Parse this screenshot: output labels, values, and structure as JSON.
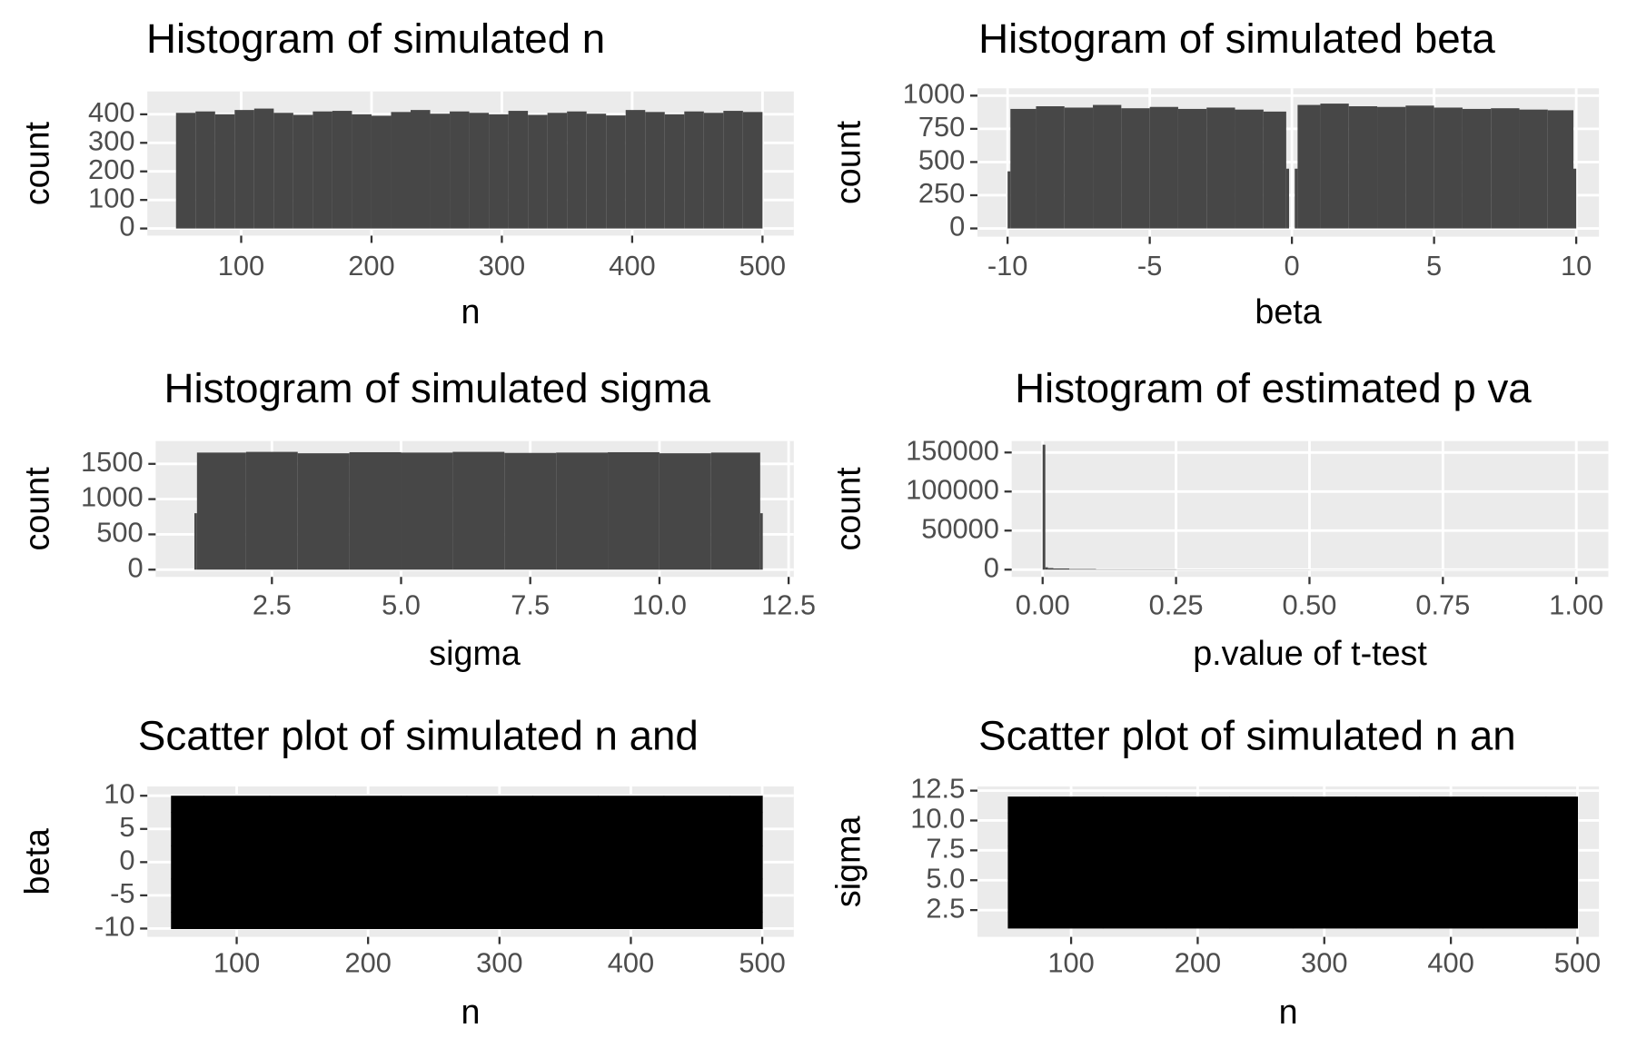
{
  "chart_data": [
    {
      "type": "histogram",
      "title": "Histogram of simulated n",
      "x_label": "n",
      "y_label": "count",
      "color": "#474747",
      "grid": true,
      "bins": [
        50,
        65,
        80,
        95,
        110,
        125,
        140,
        155,
        170,
        185,
        200,
        215,
        230,
        245,
        260,
        275,
        290,
        305,
        320,
        335,
        350,
        365,
        380,
        395,
        410,
        425,
        440,
        455,
        470,
        485,
        500
      ],
      "values": [
        405,
        410,
        400,
        415,
        420,
        405,
        398,
        410,
        412,
        400,
        395,
        408,
        415,
        402,
        410,
        405,
        400,
        412,
        398,
        405,
        410,
        402,
        396,
        415,
        408,
        400,
        410,
        405,
        412,
        408
      ],
      "xlim": [
        28,
        524
      ],
      "ylim": [
        -25,
        480
      ],
      "xticks": [
        100,
        200,
        300,
        400,
        500
      ],
      "yticks": [
        0,
        100,
        200,
        300,
        400
      ]
    },
    {
      "type": "histogram",
      "title": "Histogram of simulated beta",
      "x_label": "beta",
      "y_label": "count",
      "color": "#474747",
      "grid": true,
      "bins": [
        -10,
        -9.9,
        -9,
        -8,
        -7,
        -6,
        -5,
        -4,
        -3,
        -2,
        -1,
        -0.2,
        -0.1,
        0,
        0.1,
        0.2,
        1,
        2,
        3,
        4,
        5,
        6,
        7,
        8,
        9,
        9.9,
        10
      ],
      "values": [
        430,
        900,
        920,
        910,
        930,
        905,
        915,
        900,
        910,
        895,
        880,
        450,
        0,
        0,
        450,
        930,
        940,
        920,
        915,
        925,
        910,
        900,
        905,
        895,
        890,
        450
      ],
      "xlim": [
        -11.06,
        10.8
      ],
      "ylim": [
        -62,
        1055
      ],
      "xticks": [
        -10,
        -5,
        0,
        5,
        10
      ],
      "yticks": [
        0,
        250,
        500,
        750,
        1000
      ]
    },
    {
      "type": "histogram",
      "title": "Histogram of simulated sigma",
      "x_label": "sigma",
      "y_label": "count",
      "color": "#474747",
      "grid": true,
      "bins": [
        1,
        1.05,
        2,
        3,
        4,
        5,
        6,
        7,
        8,
        9,
        10,
        11,
        11.95,
        12
      ],
      "values": [
        800,
        1660,
        1670,
        1650,
        1665,
        1660,
        1670,
        1655,
        1660,
        1665,
        1650,
        1660,
        800
      ],
      "xlim": [
        0.25,
        12.6
      ],
      "ylim": [
        -103,
        1824
      ],
      "xticks": [
        2.5,
        {
          "value": 5,
          "label": "5.0"
        },
        7.5,
        {
          "value": 10,
          "label": "10.0"
        },
        12.5
      ],
      "yticks": [
        0,
        500,
        1000,
        1500
      ]
    },
    {
      "type": "histogram",
      "title": "Histogram of estimated p va",
      "x_label": "p.value of t-test",
      "y_label": "count",
      "color": "#474747",
      "grid": true,
      "bins": [
        0,
        0.005,
        0.01,
        0.02,
        0.05,
        0.1,
        0.25,
        0.5,
        0.75,
        1
      ],
      "values": [
        160000,
        3000,
        2000,
        1500,
        800,
        400,
        200,
        100,
        80
      ],
      "xlim": [
        -0.058,
        1.06
      ],
      "ylim": [
        -9300,
        164700
      ],
      "xticks": [
        {
          "value": 0,
          "label": "0.00"
        },
        0.25,
        {
          "value": 0.5,
          "label": "0.50"
        },
        0.75,
        {
          "value": 1,
          "label": "1.00"
        }
      ],
      "yticks": [
        0,
        50000,
        100000,
        150000
      ]
    },
    {
      "type": "scatter",
      "title": "Scatter plot of simulated n and",
      "x_label": "n",
      "y_label": "beta",
      "color": "#000000",
      "grid": true,
      "x": [
        50,
        100,
        150,
        200,
        250,
        300,
        350,
        400,
        450,
        500,
        50,
        100,
        150,
        200,
        250,
        300,
        350,
        400,
        450,
        500,
        50,
        100,
        150,
        200,
        250,
        300,
        350,
        400,
        450,
        500,
        50,
        100,
        150,
        200,
        250,
        300,
        350,
        400,
        450,
        500,
        50,
        100,
        150,
        200,
        250,
        300,
        350,
        400,
        450,
        500
      ],
      "y": [
        -10,
        -10,
        -10,
        -10,
        -10,
        -10,
        -10,
        -10,
        -10,
        -10,
        -5,
        -5,
        -5,
        -5,
        -5,
        -5,
        -5,
        -5,
        -5,
        -5,
        0,
        0,
        0,
        0,
        0,
        0,
        0,
        0,
        0,
        0,
        5,
        5,
        5,
        5,
        5,
        5,
        5,
        5,
        5,
        5,
        10,
        10,
        10,
        10,
        10,
        10,
        10,
        10,
        10,
        10
      ],
      "xlim": [
        32,
        524
      ],
      "ylim": [
        -11.25,
        11.4
      ],
      "xticks": [
        100,
        200,
        300,
        400,
        500
      ],
      "yticks": [
        -10,
        -5,
        0,
        5,
        10
      ]
    },
    {
      "type": "scatter",
      "title": "Scatter plot of simulated n an",
      "x_label": "n",
      "y_label": "sigma",
      "color": "#000000",
      "grid": true,
      "x": [
        50,
        100,
        150,
        200,
        250,
        300,
        350,
        400,
        450,
        500,
        50,
        100,
        150,
        200,
        250,
        300,
        350,
        400,
        450,
        500,
        50,
        100,
        150,
        200,
        250,
        300,
        350,
        400,
        450,
        500,
        50,
        100,
        150,
        200,
        250,
        300,
        350,
        400,
        450,
        500,
        50,
        100,
        150,
        200,
        250,
        300,
        350,
        400,
        450,
        500
      ],
      "y": [
        1,
        1,
        1,
        1,
        1,
        1,
        1,
        1,
        1,
        1,
        3.75,
        3.75,
        3.75,
        3.75,
        3.75,
        3.75,
        3.75,
        3.75,
        3.75,
        3.75,
        6.5,
        6.5,
        6.5,
        6.5,
        6.5,
        6.5,
        6.5,
        6.5,
        6.5,
        6.5,
        9.25,
        9.25,
        9.25,
        9.25,
        9.25,
        9.25,
        9.25,
        9.25,
        9.25,
        9.25,
        12,
        12,
        12,
        12,
        12,
        12,
        12,
        12,
        12,
        12
      ],
      "xlim": [
        26,
        517
      ],
      "ylim": [
        0.26,
        12.85
      ],
      "xticks": [
        100,
        200,
        300,
        400,
        500
      ],
      "yticks": [
        2.5,
        {
          "value": 5,
          "label": "5.0"
        },
        7.5,
        {
          "value": 10,
          "label": "10.0"
        },
        12.5
      ]
    }
  ]
}
